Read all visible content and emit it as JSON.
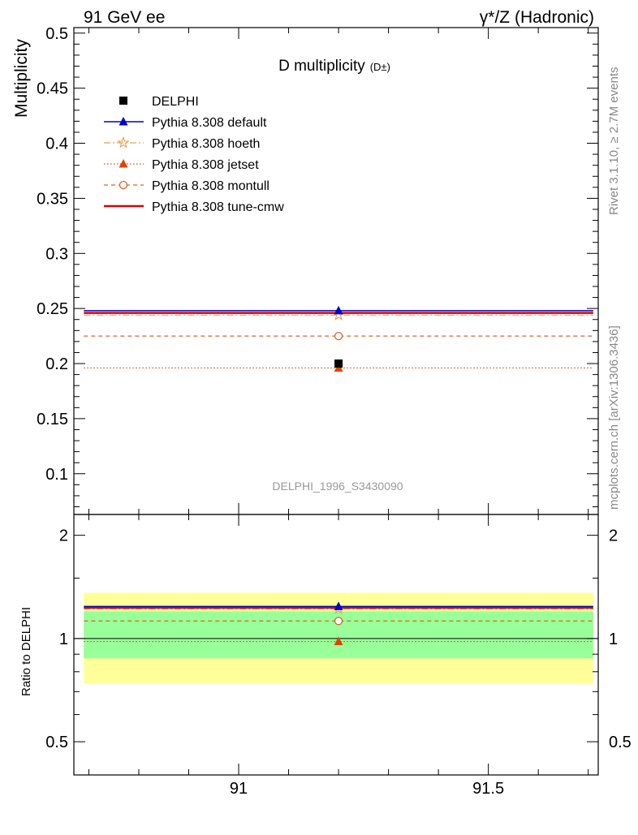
{
  "header": {
    "left": "91 GeV ee",
    "right": "γ*/Z (Hadronic)"
  },
  "side_text": {
    "rivet": "Rivet 3.1.10, ≥ 2.7M events",
    "mcplots": "mcplots.cern.ch [arXiv:1306.3436]"
  },
  "chart_data": [
    {
      "type": "line",
      "title": "D multiplicity",
      "title_suffix": "(D±)",
      "ylabel": "Multiplicity",
      "watermark": "DELPHI_1996_S3430090",
      "xlim": [
        90.67,
        91.72
      ],
      "ylim": [
        0.063,
        0.505
      ],
      "x_bin": [
        90.69,
        91.71
      ],
      "x_center": 91.2,
      "yticks": [
        "0.1",
        "0.15",
        "0.2",
        "0.25",
        "0.3",
        "0.35",
        "0.4",
        "0.45",
        "0.5"
      ],
      "legend_placement": "top-left",
      "series": [
        {
          "name": "DELPHI",
          "value": 0.2,
          "color": "#000000",
          "marker": "square",
          "line": "none"
        },
        {
          "name": "Pythia 8.308 default",
          "value": 0.248,
          "color": "#0000cc",
          "marker": "triangle",
          "line": "solid"
        },
        {
          "name": "Pythia 8.308 hoeth",
          "value": 0.244,
          "color": "#e8a050",
          "marker": "star",
          "line": "dashdot"
        },
        {
          "name": "Pythia 8.308 jetset",
          "value": 0.196,
          "color": "#dd4400",
          "marker": "triangle-filled",
          "line": "dotted"
        },
        {
          "name": "Pythia 8.308 montull",
          "value": 0.225,
          "color": "#e06030",
          "marker": "circle-open",
          "line": "dashed"
        },
        {
          "name": "Pythia 8.308 tune-cmw",
          "value": 0.246,
          "color": "#dd0000",
          "marker": "none",
          "line": "solid-thick"
        }
      ]
    },
    {
      "type": "line",
      "ylabel": "Ratio to DELPHI",
      "ylim": [
        0.4,
        2.3
      ],
      "scale": "log",
      "yticks": [
        "0.5",
        "1",
        "2"
      ],
      "xticks": [
        "91",
        "91.5"
      ],
      "bands": [
        {
          "name": "2-sigma",
          "lo": 0.74,
          "hi": 1.36,
          "color": "#ffff99"
        },
        {
          "name": "1-sigma",
          "lo": 0.875,
          "hi": 1.2,
          "color": "#99ff99"
        }
      ],
      "ratios": [
        {
          "ref": "Pythia 8.308 default",
          "value": 1.24
        },
        {
          "ref": "Pythia 8.308 hoeth",
          "value": 1.22
        },
        {
          "ref": "Pythia 8.308 jetset",
          "value": 0.98
        },
        {
          "ref": "Pythia 8.308 montull",
          "value": 1.125
        },
        {
          "ref": "Pythia 8.308 tune-cmw",
          "value": 1.23
        }
      ]
    }
  ]
}
